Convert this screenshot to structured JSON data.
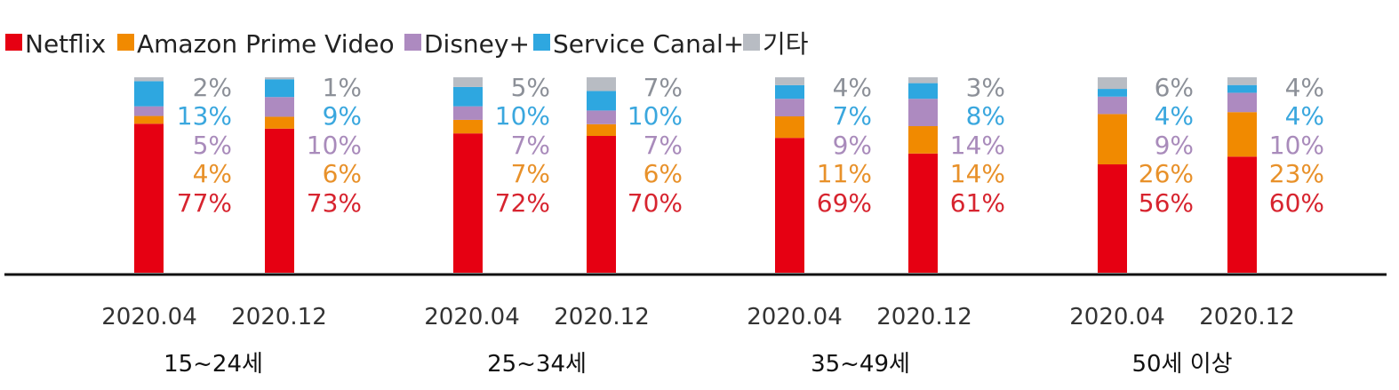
{
  "chart_data": {
    "type": "bar",
    "stacked": true,
    "normalized": true,
    "legend_position": "top-left",
    "grid": false,
    "series": [
      {
        "name": "Netflix",
        "color": "#e60012",
        "label_color": "#d7242f"
      },
      {
        "name": "Amazon Prime Video",
        "color": "#f18a00",
        "label_color": "#e8912a"
      },
      {
        "name": "Disney+",
        "color": "#ad8ac0",
        "label_color": "#a98bbb"
      },
      {
        "name": "Service Canal+",
        "color": "#2ea7e0",
        "label_color": "#3aa7de"
      },
      {
        "name": "기타",
        "color": "#b8bcc3",
        "label_color": "#8c9098"
      }
    ],
    "groups": [
      {
        "label": "15~24세",
        "bars": [
          {
            "period": "2020.04",
            "values": [
              77,
              4,
              5,
              13,
              2
            ],
            "labels": [
              "77%",
              "4%",
              "5%",
              "13%",
              "2%"
            ]
          },
          {
            "period": "2020.12",
            "values": [
              73,
              6,
              10,
              9,
              1
            ],
            "labels": [
              "73%",
              "6%",
              "10%",
              "9%",
              "1%"
            ]
          }
        ]
      },
      {
        "label": "25~34세",
        "bars": [
          {
            "period": "2020.04",
            "values": [
              72,
              7,
              7,
              10,
              5
            ],
            "labels": [
              "72%",
              "7%",
              "7%",
              "10%",
              "5%"
            ]
          },
          {
            "period": "2020.12",
            "values": [
              70,
              6,
              7,
              10,
              7
            ],
            "labels": [
              "70%",
              "6%",
              "7%",
              "10%",
              "7%"
            ]
          }
        ]
      },
      {
        "label": "35~49세",
        "bars": [
          {
            "period": "2020.04",
            "values": [
              69,
              11,
              9,
              7,
              4
            ],
            "labels": [
              "69%",
              "11%",
              "9%",
              "7%",
              "4%"
            ]
          },
          {
            "period": "2020.12",
            "values": [
              61,
              14,
              14,
              8,
              3
            ],
            "labels": [
              "61%",
              "14%",
              "14%",
              "8%",
              "3%"
            ]
          }
        ]
      },
      {
        "label": "50세 이상",
        "bars": [
          {
            "period": "2020.04",
            "values": [
              56,
              26,
              9,
              4,
              6
            ],
            "labels": [
              "56%",
              "26%",
              "9%",
              "4%",
              "6%"
            ]
          },
          {
            "period": "2020.12",
            "values": [
              60,
              23,
              10,
              4,
              4
            ],
            "labels": [
              "60%",
              "23%",
              "10%",
              "4%",
              "4%"
            ]
          }
        ]
      }
    ]
  }
}
